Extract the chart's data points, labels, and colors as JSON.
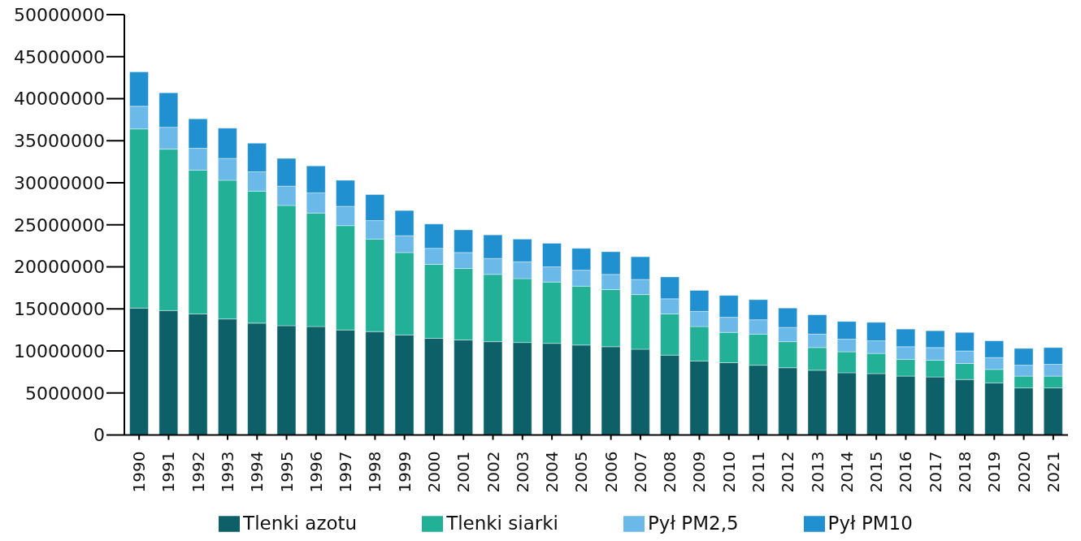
{
  "chart_data": {
    "type": "bar",
    "stacked": true,
    "categories": [
      "1990",
      "1991",
      "1992",
      "1993",
      "1994",
      "1995",
      "1996",
      "1997",
      "1998",
      "1999",
      "2000",
      "2001",
      "2002",
      "2003",
      "2004",
      "2005",
      "2006",
      "2007",
      "2008",
      "2009",
      "2010",
      "2011",
      "2012",
      "2013",
      "2014",
      "2015",
      "2016",
      "2017",
      "2018",
      "2019",
      "2020",
      "2021"
    ],
    "series": [
      {
        "name": "Tlenki azotu",
        "color": "#0e6068",
        "values": [
          15100000,
          14800000,
          14400000,
          13800000,
          13300000,
          13000000,
          12900000,
          12500000,
          12300000,
          11900000,
          11500000,
          11300000,
          11100000,
          11000000,
          10900000,
          10700000,
          10500000,
          10200000,
          9500000,
          8800000,
          8600000,
          8300000,
          8000000,
          7700000,
          7400000,
          7300000,
          7000000,
          6900000,
          6600000,
          6200000,
          5600000,
          5600000
        ]
      },
      {
        "name": "Tlenki siarki",
        "color": "#22b097",
        "values": [
          21300000,
          19200000,
          17100000,
          16500000,
          15700000,
          14300000,
          13500000,
          12400000,
          11000000,
          9800000,
          8800000,
          8500000,
          8000000,
          7600000,
          7300000,
          7000000,
          6800000,
          6500000,
          4900000,
          4100000,
          3600000,
          3700000,
          3100000,
          2700000,
          2500000,
          2400000,
          2000000,
          2000000,
          1900000,
          1600000,
          1400000,
          1400000
        ]
      },
      {
        "name": "Pył PM2,5",
        "color": "#6ab9e8",
        "values": [
          2700000,
          2600000,
          2600000,
          2600000,
          2300000,
          2300000,
          2400000,
          2300000,
          2200000,
          2000000,
          1900000,
          1900000,
          1900000,
          2000000,
          1800000,
          1900000,
          1800000,
          1800000,
          1800000,
          1800000,
          1800000,
          1700000,
          1700000,
          1600000,
          1500000,
          1500000,
          1500000,
          1500000,
          1500000,
          1400000,
          1300000,
          1400000
        ]
      },
      {
        "name": "Pył PM10",
        "color": "#2190d0",
        "values": [
          4100000,
          4100000,
          3500000,
          3600000,
          3400000,
          3300000,
          3200000,
          3100000,
          3100000,
          3000000,
          2900000,
          2700000,
          2800000,
          2700000,
          2800000,
          2600000,
          2700000,
          2700000,
          2600000,
          2500000,
          2600000,
          2400000,
          2300000,
          2300000,
          2100000,
          2200000,
          2100000,
          2000000,
          2200000,
          2000000,
          2000000,
          2000000
        ]
      }
    ],
    "ylim": [
      0,
      50000000
    ],
    "yticks": [
      0,
      5000000,
      10000000,
      15000000,
      20000000,
      25000000,
      30000000,
      35000000,
      40000000,
      45000000,
      50000000
    ],
    "legend": "bottom"
  }
}
